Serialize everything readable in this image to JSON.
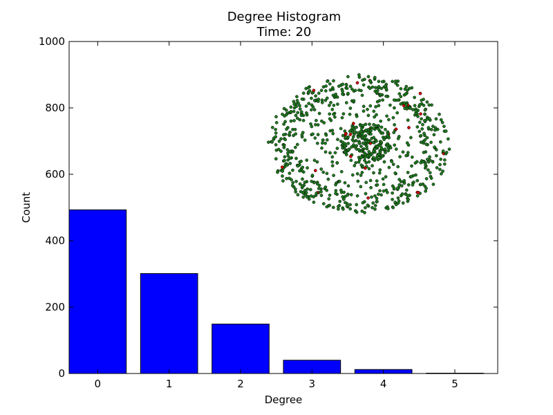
{
  "chart_data": {
    "type": "bar",
    "title": "Degree Histogram",
    "subtitle": "Time: 20",
    "xlabel": "Degree",
    "ylabel": "Count",
    "categories": [
      "0",
      "1",
      "2",
      "3",
      "4",
      "5"
    ],
    "values": [
      493,
      301,
      149,
      40,
      12,
      1
    ],
    "ylim": [
      0,
      1000
    ],
    "yticks": [
      "0",
      "200",
      "400",
      "600",
      "800",
      "1000"
    ],
    "bar_color": "#0000ff",
    "grid": false,
    "legend": "none",
    "inset": {
      "type": "network-graph",
      "node_color": "#1e7a1e",
      "highlight_node_color": "#d40000"
    }
  }
}
